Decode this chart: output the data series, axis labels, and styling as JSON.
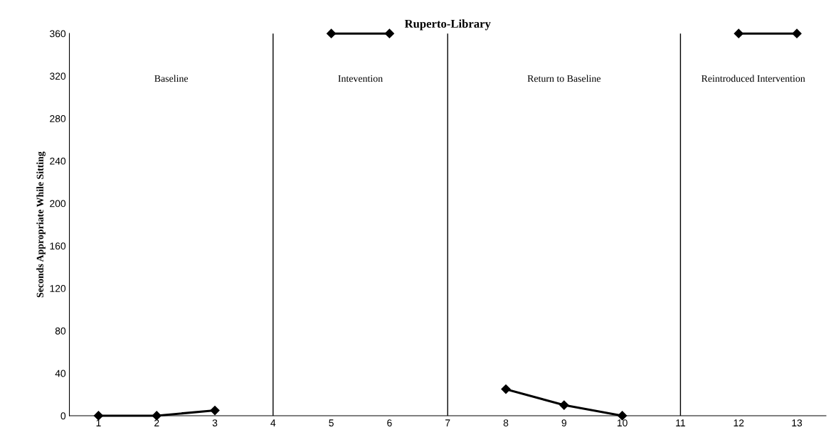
{
  "chart_data": {
    "type": "line",
    "title": "Ruperto-Library",
    "ylabel": "Seconds Appropriate While Sitting",
    "x": [
      1,
      2,
      3,
      4,
      5,
      6,
      7,
      8,
      9,
      10,
      11,
      12,
      13
    ],
    "series": [
      {
        "color": "#000000",
        "values": [
          0,
          0,
          5,
          null,
          360,
          360,
          null,
          25,
          10,
          0,
          null,
          360,
          360
        ]
      }
    ],
    "xlim": [
      0.5,
      13.5
    ],
    "xticks": [
      1,
      2,
      3,
      4,
      5,
      6,
      7,
      8,
      9,
      10,
      11,
      12,
      13
    ],
    "ylim": [
      0,
      360
    ],
    "yticks": [
      0,
      40,
      80,
      120,
      160,
      200,
      240,
      280,
      320,
      360
    ],
    "ref_lines": [
      {
        "axis": "x",
        "value": 4,
        "color": "#000000",
        "line_style": "solid"
      },
      {
        "axis": "x",
        "value": 7,
        "color": "#000000",
        "line_style": "solid"
      },
      {
        "axis": "x",
        "value": 11,
        "color": "#000000",
        "line_style": "solid"
      }
    ],
    "annotations": [
      "Baseline",
      "Intevention",
      "Return to Baseline",
      "Reintroduced Intervention"
    ],
    "marker": "diamond",
    "line_style": "solid",
    "grid": false,
    "legend": false
  }
}
